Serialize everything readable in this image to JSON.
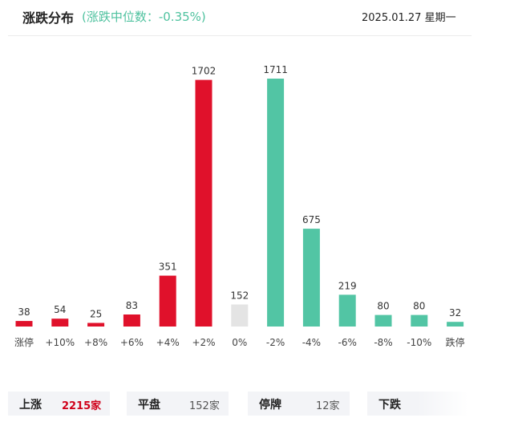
{
  "header": {
    "title": "涨跌分布",
    "subtitle": "(涨跌中位数：-0.35%)",
    "date": "2025.01.27 星期一"
  },
  "colors": {
    "up": "#e0112b",
    "down": "#52c5a4",
    "flat": "#e4e4e4",
    "subtitle": "#4fc29f"
  },
  "chart_data": {
    "type": "bar",
    "title": "涨跌分布",
    "categories": [
      "涨停",
      "+10%",
      "+8%",
      "+6%",
      "+4%",
      "+2%",
      "0%",
      "-2%",
      "-4%",
      "-6%",
      "-8%",
      "-10%",
      "跌停"
    ],
    "values": [
      38,
      54,
      25,
      83,
      351,
      1702,
      152,
      1711,
      675,
      219,
      80,
      80,
      32
    ],
    "bar_colors": [
      "up",
      "up",
      "up",
      "up",
      "up",
      "up",
      "flat",
      "down",
      "down",
      "down",
      "down",
      "down",
      "down"
    ],
    "xlabel": "",
    "ylabel": "",
    "ylim": [
      0,
      1711
    ],
    "grid": false,
    "legend": "none"
  },
  "summary": {
    "up_label": "上涨",
    "up_value": "2215家",
    "flat_label": "平盘",
    "flat_value": "152家",
    "halt_label": "停牌",
    "halt_value": "12家",
    "down_label": "下跌"
  }
}
